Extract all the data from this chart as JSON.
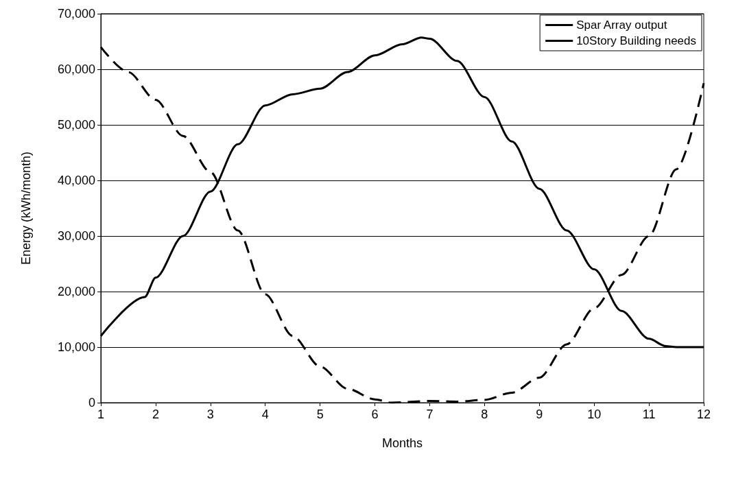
{
  "chart_data": {
    "type": "line",
    "xlabel": "Months",
    "ylabel": "Energy (kWh/month)",
    "xlim": [
      1,
      12
    ],
    "xticks": [
      1,
      2,
      3,
      4,
      5,
      6,
      7,
      8,
      9,
      10,
      11,
      12
    ],
    "ylim": [
      0,
      70000
    ],
    "yticks": [
      {
        "value": 0,
        "label": "0"
      },
      {
        "value": 10000,
        "label": "10,000"
      },
      {
        "value": 20000,
        "label": "20,000"
      },
      {
        "value": 30000,
        "label": "30,000"
      },
      {
        "value": 40000,
        "label": "40,000"
      },
      {
        "value": 50000,
        "label": "50,000"
      },
      {
        "value": 60000,
        "label": "60,000"
      },
      {
        "value": 70000,
        "label": "70,000"
      }
    ],
    "grid": "y",
    "legend": "top right",
    "marker": "none",
    "series": [
      {
        "name": "Spar Array output",
        "color": "#000000",
        "line_style": "solid",
        "x": [
          1,
          1.8,
          2,
          2.5,
          3,
          3.5,
          4,
          4.5,
          5,
          5.5,
          6,
          6.5,
          6.85,
          7,
          7.5,
          8,
          8.5,
          9,
          9.5,
          10,
          10.5,
          11,
          11.3,
          11.5,
          12
        ],
        "values": [
          12000,
          19000,
          22500,
          30000,
          38000,
          46500,
          53500,
          55500,
          56500,
          59500,
          62500,
          64500,
          65700,
          65500,
          61500,
          55000,
          47000,
          38500,
          31000,
          24000,
          16500,
          11500,
          10200,
          10000,
          10000
        ]
      },
      {
        "name": "10Story Building needs",
        "color": "#000000",
        "line_style": "dashed",
        "x": [
          1,
          1.5,
          2,
          2.5,
          3,
          3.5,
          4,
          4.5,
          5,
          5.5,
          6,
          6.3,
          7,
          7.5,
          8,
          8.5,
          9,
          9.5,
          10,
          10.5,
          11,
          11.5,
          12
        ],
        "values": [
          64000,
          59500,
          54500,
          48000,
          41500,
          31000,
          19500,
          12000,
          6500,
          2500,
          600,
          0,
          300,
          200,
          500,
          1800,
          4500,
          10500,
          17000,
          23000,
          30000,
          42000,
          57500
        ]
      }
    ]
  }
}
